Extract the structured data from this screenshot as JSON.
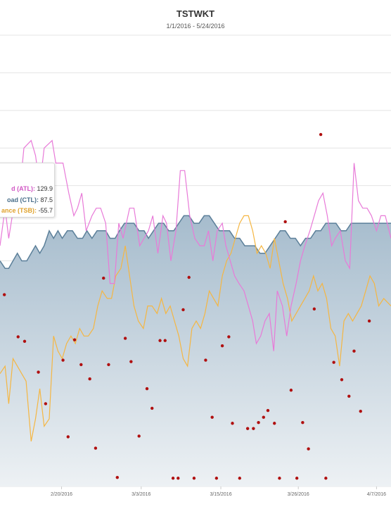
{
  "title": "TSTWKT",
  "subtitle": "1/1/2016 - 5/24/2016",
  "tooltip": {
    "atl_label": "d (ATL):",
    "atl_value": "129.9",
    "ctl_label": "oad (CTL):",
    "ctl_value": "87.5",
    "tsb_label": "ance (TSB):",
    "tsb_value": "-55.7"
  },
  "colors": {
    "atl": "#e87ad8",
    "ctl_line": "#5b7f99",
    "ctl_fill_top": "#a6bccd",
    "ctl_fill_bottom": "#edf1f4",
    "tsb": "#f5b642",
    "tss": "#b01010",
    "grid": "#e4e4e4",
    "plot_bg": "#eef0f1"
  },
  "chart_data": {
    "type": "line",
    "title": "TSTWKT",
    "subtitle": "1/1/2016 - 5/24/2016",
    "x_ticks": [
      "2/20/2016",
      "3/3/2016",
      "3/15/2016",
      "3/26/2016",
      "4/7/2016"
    ],
    "x_range": [
      "2/12/2016",
      "4/10/2016"
    ],
    "ylim": [
      0,
      6
    ],
    "grid": true,
    "legend": "none",
    "series": [
      {
        "name": "d (ATL)",
        "color": "#e87ad8",
        "points": [
          [
            0,
            3.2
          ],
          [
            0.7,
            3.7
          ],
          [
            1.2,
            3.3
          ],
          [
            1.7,
            3.6
          ],
          [
            2.2,
            3.7
          ],
          [
            2.7,
            3.9
          ],
          [
            3.3,
            4.5
          ],
          [
            4.3,
            4.6
          ],
          [
            4.9,
            4.4
          ],
          [
            5.5,
            4.0
          ],
          [
            6.1,
            4.5
          ],
          [
            7.2,
            4.6
          ],
          [
            7.7,
            4.3
          ],
          [
            8.2,
            4.3
          ],
          [
            8.7,
            4.3
          ],
          [
            9.5,
            3.9
          ],
          [
            10.2,
            3.6
          ],
          [
            10.7,
            3.7
          ],
          [
            11.3,
            3.9
          ],
          [
            11.9,
            3.4
          ],
          [
            12.7,
            3.6
          ],
          [
            13.3,
            3.7
          ],
          [
            13.9,
            3.7
          ],
          [
            14.6,
            3.5
          ],
          [
            15.2,
            2.7
          ],
          [
            15.8,
            2.7
          ],
          [
            16.4,
            3.5
          ],
          [
            17.0,
            3.3
          ],
          [
            17.9,
            3.7
          ],
          [
            18.5,
            3.7
          ],
          [
            19.3,
            3.2
          ],
          [
            19.9,
            3.3
          ],
          [
            20.5,
            3.4
          ],
          [
            21.1,
            3.6
          ],
          [
            21.8,
            3.1
          ],
          [
            22.5,
            3.6
          ],
          [
            23.0,
            3.5
          ],
          [
            23.6,
            3.0
          ],
          [
            24.3,
            3.4
          ],
          [
            24.9,
            4.2
          ],
          [
            25.5,
            4.2
          ],
          [
            26.2,
            3.6
          ],
          [
            26.9,
            3.3
          ],
          [
            27.6,
            3.2
          ],
          [
            28.2,
            3.2
          ],
          [
            28.8,
            3.4
          ],
          [
            29.4,
            3.0
          ],
          [
            30.0,
            3.4
          ],
          [
            30.7,
            3.5
          ],
          [
            31.2,
            3.2
          ],
          [
            31.8,
            3.0
          ],
          [
            32.4,
            2.8
          ],
          [
            33.0,
            2.7
          ],
          [
            33.7,
            2.6
          ],
          [
            34.3,
            2.4
          ],
          [
            34.9,
            2.2
          ],
          [
            35.4,
            1.9
          ],
          [
            36.0,
            2.0
          ],
          [
            36.6,
            2.2
          ],
          [
            37.2,
            2.3
          ],
          [
            37.8,
            1.8
          ],
          [
            38.3,
            2.6
          ],
          [
            39.0,
            2.4
          ],
          [
            39.6,
            2.0
          ],
          [
            40.2,
            2.4
          ],
          [
            40.9,
            2.7
          ],
          [
            41.5,
            3.0
          ],
          [
            42.1,
            3.2
          ],
          [
            42.8,
            3.4
          ],
          [
            43.4,
            3.6
          ],
          [
            44.0,
            3.8
          ],
          [
            44.6,
            3.9
          ],
          [
            45.2,
            3.6
          ],
          [
            45.8,
            3.2
          ],
          [
            46.3,
            3.3
          ],
          [
            47.0,
            3.4
          ],
          [
            47.7,
            3.0
          ],
          [
            48.3,
            2.9
          ],
          [
            48.9,
            4.3
          ],
          [
            49.5,
            3.8
          ],
          [
            50.1,
            3.7
          ],
          [
            50.7,
            3.7
          ],
          [
            51.3,
            3.6
          ],
          [
            52.0,
            3.4
          ],
          [
            52.6,
            3.6
          ],
          [
            53.2,
            3.6
          ],
          [
            54.0,
            3.3
          ]
        ]
      },
      {
        "name": "oad (CTL)",
        "color": "#5b7f99",
        "points": [
          [
            0,
            3.0
          ],
          [
            0.7,
            2.9
          ],
          [
            1.2,
            2.9
          ],
          [
            1.8,
            3.0
          ],
          [
            2.4,
            3.1
          ],
          [
            3.0,
            3.0
          ],
          [
            3.7,
            3.0
          ],
          [
            4.3,
            3.1
          ],
          [
            4.9,
            3.2
          ],
          [
            5.5,
            3.1
          ],
          [
            6.1,
            3.2
          ],
          [
            6.8,
            3.4
          ],
          [
            7.4,
            3.3
          ],
          [
            8.0,
            3.4
          ],
          [
            8.6,
            3.3
          ],
          [
            9.3,
            3.4
          ],
          [
            10.0,
            3.4
          ],
          [
            10.7,
            3.3
          ],
          [
            11.4,
            3.3
          ],
          [
            12.0,
            3.4
          ],
          [
            12.7,
            3.3
          ],
          [
            13.4,
            3.4
          ],
          [
            14.0,
            3.4
          ],
          [
            14.6,
            3.4
          ],
          [
            15.2,
            3.3
          ],
          [
            15.9,
            3.3
          ],
          [
            16.5,
            3.4
          ],
          [
            17.2,
            3.5
          ],
          [
            17.9,
            3.5
          ],
          [
            18.5,
            3.5
          ],
          [
            19.2,
            3.4
          ],
          [
            19.9,
            3.4
          ],
          [
            20.5,
            3.3
          ],
          [
            21.2,
            3.4
          ],
          [
            21.9,
            3.5
          ],
          [
            22.6,
            3.5
          ],
          [
            23.3,
            3.4
          ],
          [
            24.0,
            3.4
          ],
          [
            24.7,
            3.5
          ],
          [
            25.4,
            3.6
          ],
          [
            26.1,
            3.6
          ],
          [
            26.8,
            3.5
          ],
          [
            27.5,
            3.5
          ],
          [
            28.2,
            3.6
          ],
          [
            28.9,
            3.6
          ],
          [
            29.6,
            3.5
          ],
          [
            30.3,
            3.4
          ],
          [
            31.0,
            3.4
          ],
          [
            31.7,
            3.4
          ],
          [
            32.4,
            3.3
          ],
          [
            33.1,
            3.3
          ],
          [
            33.8,
            3.2
          ],
          [
            34.5,
            3.2
          ],
          [
            35.2,
            3.2
          ],
          [
            35.9,
            3.1
          ],
          [
            36.6,
            3.1
          ],
          [
            37.3,
            3.2
          ],
          [
            38.0,
            3.3
          ],
          [
            38.7,
            3.4
          ],
          [
            39.4,
            3.4
          ],
          [
            40.1,
            3.3
          ],
          [
            40.8,
            3.3
          ],
          [
            41.5,
            3.2
          ],
          [
            42.2,
            3.3
          ],
          [
            42.9,
            3.3
          ],
          [
            43.6,
            3.4
          ],
          [
            44.3,
            3.4
          ],
          [
            45.0,
            3.5
          ],
          [
            45.7,
            3.5
          ],
          [
            46.4,
            3.5
          ],
          [
            47.1,
            3.4
          ],
          [
            47.8,
            3.4
          ],
          [
            48.5,
            3.5
          ],
          [
            49.2,
            3.5
          ],
          [
            49.9,
            3.5
          ],
          [
            50.6,
            3.5
          ],
          [
            51.3,
            3.5
          ],
          [
            52.0,
            3.5
          ],
          [
            52.7,
            3.5
          ],
          [
            53.4,
            3.5
          ],
          [
            54.0,
            3.5
          ]
        ]
      },
      {
        "name": "ance (TSB)",
        "color": "#f5b642",
        "points": [
          [
            0,
            1.5
          ],
          [
            0.7,
            1.6
          ],
          [
            1.2,
            1.1
          ],
          [
            1.8,
            1.7
          ],
          [
            2.4,
            1.6
          ],
          [
            3.0,
            1.5
          ],
          [
            3.6,
            1.4
          ],
          [
            4.3,
            0.6
          ],
          [
            4.9,
            0.9
          ],
          [
            5.5,
            1.3
          ],
          [
            6.1,
            0.8
          ],
          [
            6.8,
            0.9
          ],
          [
            7.4,
            2.0
          ],
          [
            8.0,
            1.8
          ],
          [
            8.6,
            1.7
          ],
          [
            9.2,
            1.9
          ],
          [
            9.8,
            2.0
          ],
          [
            10.4,
            1.9
          ],
          [
            11.0,
            2.1
          ],
          [
            11.6,
            2.0
          ],
          [
            12.2,
            2.0
          ],
          [
            12.9,
            2.1
          ],
          [
            13.5,
            2.4
          ],
          [
            14.1,
            2.6
          ],
          [
            14.8,
            2.5
          ],
          [
            15.4,
            2.5
          ],
          [
            16.0,
            2.8
          ],
          [
            16.7,
            2.9
          ],
          [
            17.3,
            3.2
          ],
          [
            17.9,
            2.8
          ],
          [
            18.5,
            2.4
          ],
          [
            19.1,
            2.2
          ],
          [
            19.8,
            2.1
          ],
          [
            20.4,
            2.4
          ],
          [
            21.0,
            2.4
          ],
          [
            21.7,
            2.3
          ],
          [
            22.3,
            2.5
          ],
          [
            22.9,
            2.3
          ],
          [
            23.5,
            2.4
          ],
          [
            24.1,
            2.2
          ],
          [
            24.7,
            2.0
          ],
          [
            25.3,
            1.7
          ],
          [
            25.9,
            1.6
          ],
          [
            26.5,
            2.1
          ],
          [
            27.1,
            2.2
          ],
          [
            27.7,
            2.1
          ],
          [
            28.3,
            2.3
          ],
          [
            28.9,
            2.6
          ],
          [
            29.5,
            2.5
          ],
          [
            30.1,
            2.4
          ],
          [
            30.7,
            2.8
          ],
          [
            31.3,
            3.0
          ],
          [
            31.9,
            3.1
          ],
          [
            32.5,
            3.3
          ],
          [
            33.1,
            3.5
          ],
          [
            33.7,
            3.6
          ],
          [
            34.3,
            3.6
          ],
          [
            34.9,
            3.4
          ],
          [
            35.5,
            3.1
          ],
          [
            36.1,
            3.2
          ],
          [
            36.7,
            3.1
          ],
          [
            37.3,
            2.9
          ],
          [
            37.9,
            3.3
          ],
          [
            38.5,
            3.0
          ],
          [
            39.1,
            2.7
          ],
          [
            39.7,
            2.5
          ],
          [
            40.3,
            2.2
          ],
          [
            40.9,
            2.3
          ],
          [
            41.5,
            2.4
          ],
          [
            42.1,
            2.5
          ],
          [
            42.7,
            2.6
          ],
          [
            43.3,
            2.8
          ],
          [
            43.9,
            2.6
          ],
          [
            44.5,
            2.7
          ],
          [
            45.1,
            2.5
          ],
          [
            45.7,
            2.1
          ],
          [
            46.3,
            2.0
          ],
          [
            46.9,
            1.6
          ],
          [
            47.5,
            2.2
          ],
          [
            48.1,
            2.3
          ],
          [
            48.7,
            2.2
          ],
          [
            49.3,
            2.3
          ],
          [
            49.9,
            2.4
          ],
          [
            50.5,
            2.6
          ],
          [
            51.1,
            2.8
          ],
          [
            51.7,
            2.7
          ],
          [
            52.3,
            2.4
          ],
          [
            53.0,
            2.5
          ],
          [
            54.0,
            2.4
          ]
        ]
      },
      {
        "name": "TSS",
        "color": "#b01010",
        "type": "scatter",
        "points": [
          [
            0.6,
            2.55
          ],
          [
            2.5,
            1.99
          ],
          [
            3.4,
            1.93
          ],
          [
            5.3,
            1.52
          ],
          [
            6.3,
            1.1
          ],
          [
            8.7,
            1.68
          ],
          [
            9.4,
            0.66
          ],
          [
            10.3,
            1.95
          ],
          [
            11.2,
            1.62
          ],
          [
            12.4,
            1.43
          ],
          [
            13.2,
            0.51
          ],
          [
            14.3,
            2.77
          ],
          [
            15.0,
            1.62
          ],
          [
            16.2,
            0.12
          ],
          [
            17.3,
            1.97
          ],
          [
            18.1,
            1.66
          ],
          [
            19.2,
            0.67
          ],
          [
            20.3,
            1.3
          ],
          [
            21.0,
            1.04
          ],
          [
            22.1,
            1.94
          ],
          [
            22.8,
            1.94
          ],
          [
            23.9,
            0.11
          ],
          [
            24.6,
            0.11
          ],
          [
            25.3,
            2.35
          ],
          [
            26.1,
            2.78
          ],
          [
            26.8,
            0.11
          ],
          [
            28.4,
            1.68
          ],
          [
            29.3,
            0.92
          ],
          [
            29.9,
            0.11
          ],
          [
            30.7,
            1.87
          ],
          [
            31.6,
            1.99
          ],
          [
            32.1,
            0.84
          ],
          [
            33.1,
            0.11
          ],
          [
            34.2,
            0.77
          ],
          [
            35.0,
            0.77
          ],
          [
            35.7,
            0.85
          ],
          [
            36.4,
            0.92
          ],
          [
            37.0,
            1.01
          ],
          [
            37.9,
            0.84
          ],
          [
            38.6,
            0.11
          ],
          [
            39.4,
            3.52
          ],
          [
            40.2,
            1.28
          ],
          [
            41.0,
            0.11
          ],
          [
            41.8,
            0.85
          ],
          [
            42.6,
            0.5
          ],
          [
            43.4,
            2.36
          ],
          [
            44.3,
            4.68
          ],
          [
            45.0,
            0.11
          ],
          [
            46.1,
            1.65
          ],
          [
            47.2,
            1.42
          ],
          [
            48.2,
            1.2
          ],
          [
            48.9,
            1.8
          ],
          [
            49.8,
            1.0
          ],
          [
            51.0,
            2.2
          ]
        ]
      }
    ]
  }
}
